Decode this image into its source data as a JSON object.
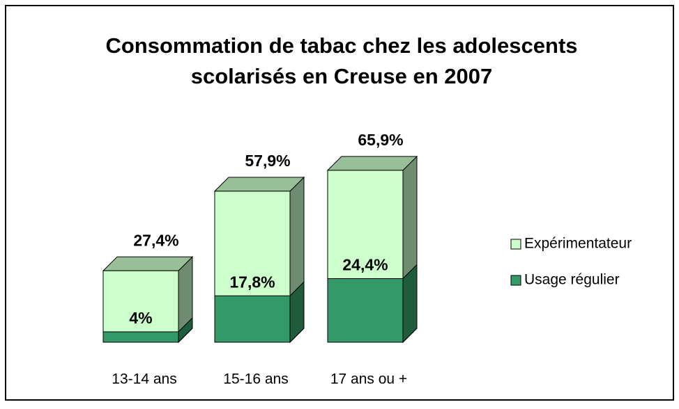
{
  "chart_data": {
    "type": "bar3d-overlap",
    "title": [
      "Consommation de tabac chez les adolescents",
      "scolarisés en Creuse en 2007"
    ],
    "categories": [
      "13-14 ans",
      "15-16 ans",
      "17 ans ou +"
    ],
    "series": [
      {
        "name": "Expérimentateur",
        "color": "#ccffcc",
        "values": [
          27.4,
          57.9,
          65.9
        ],
        "value_labels": [
          "27,4%",
          "57,9%",
          "65,9%"
        ]
      },
      {
        "name": "Usage régulier",
        "color": "#339966",
        "values": [
          4,
          17.8,
          24.4
        ],
        "value_labels": [
          "4%",
          "17,8%",
          "24,4%"
        ]
      }
    ],
    "legend": "right"
  }
}
